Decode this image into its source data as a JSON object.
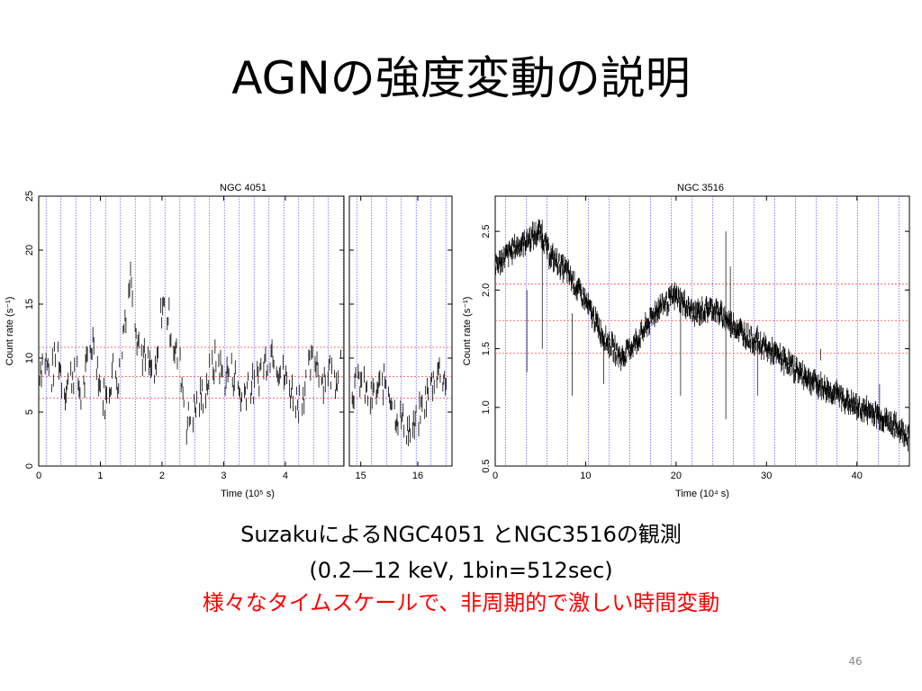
{
  "slide": {
    "title": "AGNの強度変動の説明",
    "caption_line1": "SuzakuによるNGC4051 とNGC3516の観測",
    "caption_line2": "(0.2—12 keV, 1bin=512sec)",
    "caption_line3": "様々なタイムスケールで、非周期的で激しい時間変動",
    "page_number": "46"
  },
  "chart_data": [
    {
      "type": "line",
      "title": "NGC 4051",
      "ylabel": "Count rate (s⁻¹)",
      "xlabel": "Time (10⁵ s)",
      "ylim": [
        0,
        25
      ],
      "yticks": [
        "0",
        "5",
        "10",
        "15",
        "20",
        "25"
      ],
      "panels": [
        {
          "xlim": [
            0,
            4.95
          ],
          "xticks": [
            "0",
            "1",
            "2",
            "3",
            "4"
          ]
        },
        {
          "xlim": [
            14.8,
            16.6
          ],
          "xticks": [
            "15",
            "16"
          ]
        }
      ],
      "reference_levels": [
        6.3,
        8.3,
        11.0
      ],
      "series": [
        {
          "x": [
            0.0,
            0.1,
            0.2,
            0.3,
            0.4,
            0.5,
            0.6,
            0.7,
            0.8,
            0.9,
            1.0,
            1.1,
            1.2,
            1.3,
            1.4,
            1.5,
            1.6,
            1.7,
            1.8,
            1.9,
            2.0,
            2.1,
            2.2,
            2.3,
            2.4,
            2.5,
            2.6,
            2.7,
            2.8,
            2.9,
            3.0,
            3.1,
            3.2,
            3.3,
            3.4,
            3.5,
            3.6,
            3.7,
            3.8,
            3.9,
            4.0,
            4.1,
            4.2,
            4.3,
            4.4,
            4.5,
            4.6,
            4.7,
            4.8,
            4.9
          ],
          "values": [
            9,
            10,
            8,
            11,
            7,
            8,
            9,
            6,
            10,
            12,
            7,
            6,
            9,
            8,
            14,
            18,
            12,
            10,
            9,
            8,
            15,
            14,
            11,
            9,
            4,
            5,
            6,
            7,
            9,
            10,
            8,
            9,
            8,
            6,
            8,
            7,
            9,
            10,
            11,
            9,
            8,
            7,
            6,
            7,
            9,
            10,
            8,
            9,
            8,
            10
          ]
        },
        {
          "x": [
            14.85,
            15.0,
            15.15,
            15.3,
            15.45,
            15.6,
            15.75,
            15.9,
            16.05,
            16.2,
            16.35,
            16.5
          ],
          "values": [
            7,
            8,
            6,
            7,
            8,
            5,
            4,
            3,
            5,
            7,
            9,
            8
          ]
        }
      ]
    },
    {
      "type": "line",
      "title": "NGC 3516",
      "ylabel": "Count rate (s⁻¹)",
      "xlabel": "Time (10⁴ s)",
      "xlim": [
        0,
        45.8
      ],
      "ylim": [
        0.5,
        2.8
      ],
      "xticks": [
        "0",
        "10",
        "20",
        "30",
        "40"
      ],
      "yticks": [
        "0.5",
        "1.0",
        "1.5",
        "2.0",
        "2.5"
      ],
      "reference_levels": [
        1.46,
        1.74,
        2.05
      ],
      "series": [
        {
          "x": [
            0,
            2,
            4,
            5,
            6,
            8,
            10,
            12,
            14,
            16,
            18,
            20,
            22,
            24,
            26,
            28,
            30,
            32,
            34,
            36,
            38,
            40,
            42,
            44,
            45.8
          ],
          "values": [
            2.2,
            2.35,
            2.45,
            2.5,
            2.3,
            2.15,
            1.9,
            1.6,
            1.42,
            1.6,
            1.85,
            1.95,
            1.8,
            1.85,
            1.72,
            1.6,
            1.5,
            1.4,
            1.28,
            1.18,
            1.1,
            1.0,
            0.95,
            0.85,
            0.75
          ]
        }
      ]
    }
  ]
}
